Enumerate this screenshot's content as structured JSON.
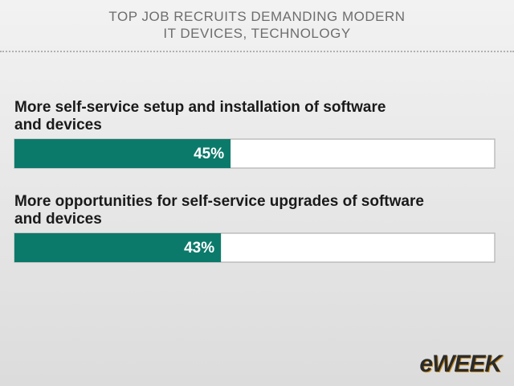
{
  "chart_data": {
    "type": "bar",
    "title": "TOP JOB RECRUITS DEMANDING MODERN\nIT DEVICES, TECHNOLOGY",
    "categories": [
      "More self-service setup and installation of software\nand devices",
      "More opportunities for self-service upgrades of software\nand devices"
    ],
    "values": [
      45,
      43
    ],
    "value_labels": [
      "45%",
      "43%"
    ],
    "color": "#0c7a6a",
    "xlim": [
      0,
      100
    ]
  },
  "logo": "eWEEK"
}
